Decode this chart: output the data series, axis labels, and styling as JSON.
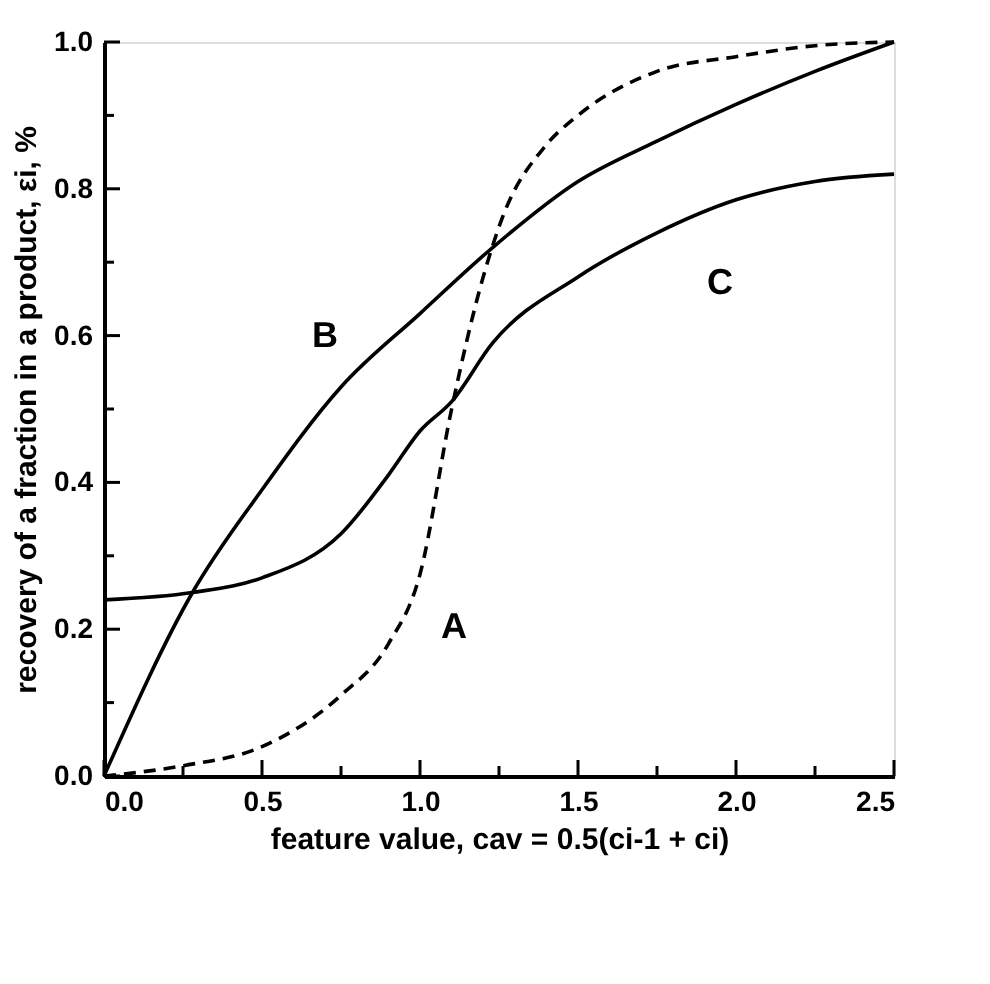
{
  "chart_data": {
    "type": "line",
    "xlabel": "feature value,   cav = 0.5(ci-1 + ci)",
    "ylabel": "recovery of a fraction in a product,   εi, %",
    "xlim": [
      0,
      2.5
    ],
    "ylim": [
      0,
      1.0
    ],
    "xticks": [
      {
        "value": 0,
        "label": "0.0"
      },
      {
        "value": 0.25,
        "label": null
      },
      {
        "value": 0.5,
        "label": "0.5"
      },
      {
        "value": 0.75,
        "label": null
      },
      {
        "value": 1.0,
        "label": "1.0"
      },
      {
        "value": 1.25,
        "label": null
      },
      {
        "value": 1.5,
        "label": "1.5"
      },
      {
        "value": 1.75,
        "label": null
      },
      {
        "value": 2.0,
        "label": "2.0"
      },
      {
        "value": 2.25,
        "label": null
      },
      {
        "value": 2.5,
        "label": "2.5"
      }
    ],
    "yticks": [
      {
        "value": 0,
        "label": "0.0"
      },
      {
        "value": 0.1,
        "label": null
      },
      {
        "value": 0.2,
        "label": "0.2"
      },
      {
        "value": 0.3,
        "label": null
      },
      {
        "value": 0.4,
        "label": "0.4"
      },
      {
        "value": 0.5,
        "label": null
      },
      {
        "value": 0.6,
        "label": "0.6"
      },
      {
        "value": 0.7,
        "label": null
      },
      {
        "value": 0.8,
        "label": "0.8"
      },
      {
        "value": 0.9,
        "label": null
      },
      {
        "value": 1.0,
        "label": "1.0"
      }
    ],
    "grid": false,
    "legend": false,
    "marker": "none",
    "series": [
      {
        "name": "A",
        "color": "#000000",
        "line_style": "dashed",
        "x": [
          0,
          0.25,
          0.5,
          0.75,
          0.9,
          1.0,
          1.1,
          1.2,
          1.26,
          1.4,
          1.5,
          1.75,
          2.0,
          2.25,
          2.5
        ],
        "values": [
          0,
          0.014,
          0.04,
          0.11,
          0.18,
          0.275,
          0.5,
          0.68,
          0.76,
          0.86,
          0.9,
          0.96,
          0.98,
          0.995,
          1.0
        ]
      },
      {
        "name": "B",
        "color": "#000000",
        "line_style": "solid",
        "x": [
          0,
          0.28,
          0.5,
          0.75,
          1.0,
          1.23,
          1.5,
          1.75,
          2.0,
          2.25,
          2.5
        ],
        "values": [
          0,
          0.25,
          0.39,
          0.53,
          0.63,
          0.72,
          0.81,
          0.865,
          0.915,
          0.96,
          1.0
        ]
      },
      {
        "name": "C",
        "color": "#000000",
        "line_style": "solid",
        "x": [
          0,
          0.28,
          0.5,
          0.75,
          0.9,
          1.0,
          1.1,
          1.23,
          1.5,
          1.75,
          2.0,
          2.25,
          2.5
        ],
        "values": [
          0.24,
          0.25,
          0.27,
          0.33,
          0.41,
          0.47,
          0.51,
          0.59,
          0.68,
          0.74,
          0.785,
          0.81,
          0.82
        ]
      }
    ]
  }
}
